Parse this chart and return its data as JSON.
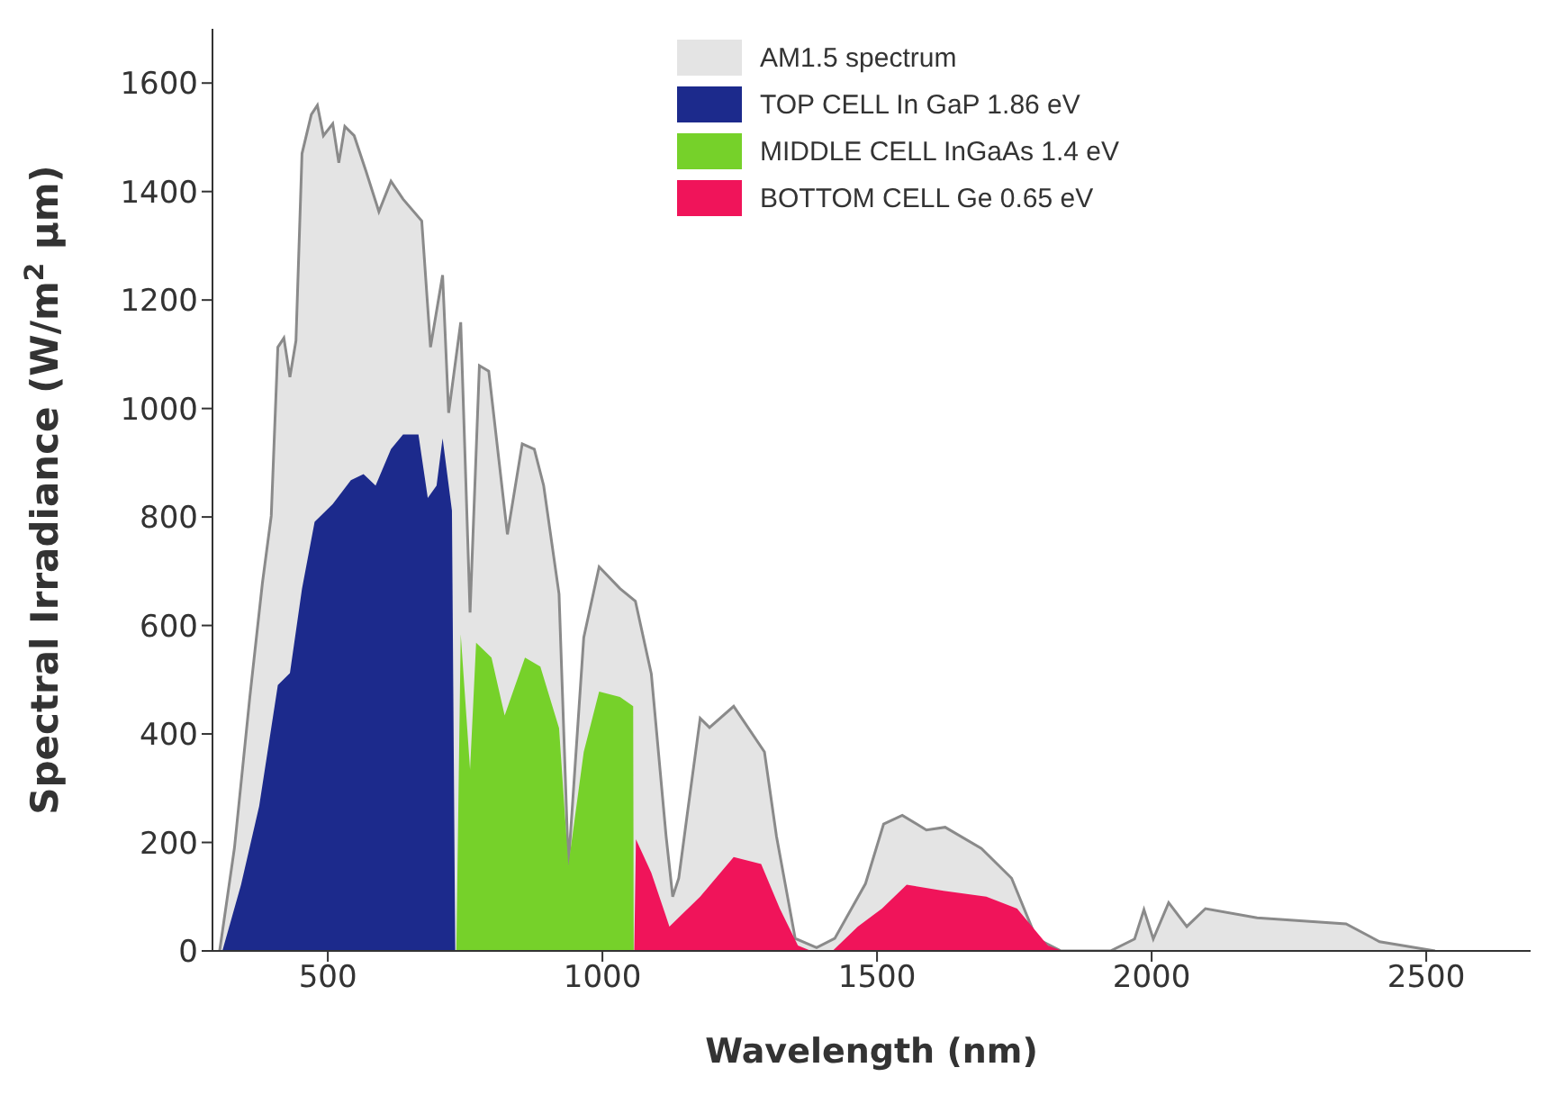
{
  "chart_data": {
    "type": "area",
    "xlabel": "Wavelength (nm)",
    "ylabel": "Spectral Irradiance (W/m$^{2}$ µm)",
    "xlim": [
      290,
      2690
    ],
    "ylim": [
      0,
      1700
    ],
    "xticks": [
      500,
      1000,
      1500,
      2000,
      2500
    ],
    "yticks": [
      0,
      200,
      400,
      600,
      800,
      1000,
      1200,
      1400,
      1600
    ],
    "legend": "top right",
    "grid": false,
    "series": [
      {
        "name": "AM1.5 spectrum",
        "color": "#e4e4e4",
        "x": [
          303,
          330,
          358,
          381,
          397,
          409,
          420,
          431,
          442,
          453,
          470,
          481,
          492,
          509,
          520,
          531,
          548,
          570,
          593,
          615,
          637,
          671,
          687,
          709,
          720,
          742,
          759,
          776,
          793,
          827,
          854,
          876,
          893,
          921,
          938,
          966,
          994,
          1032,
          1060,
          1089,
          1116,
          1128,
          1139,
          1155,
          1178,
          1195,
          1239,
          1295,
          1317,
          1351,
          1390,
          1423,
          1479,
          1512,
          1546,
          1590,
          1624,
          1690,
          1745,
          1790,
          1835,
          1925,
          1969,
          1986,
          2003,
          2031,
          2064,
          2098,
          2192,
          2354,
          2415,
          2516
        ],
        "values": [
          0,
          190,
          468,
          679,
          802,
          1113,
          1130,
          1058,
          1125,
          1470,
          1542,
          1559,
          1503,
          1525,
          1453,
          1520,
          1503,
          1436,
          1363,
          1419,
          1386,
          1346,
          1113,
          1246,
          992,
          1159,
          624,
          1079,
          1069,
          768,
          935,
          925,
          858,
          658,
          157,
          578,
          708,
          668,
          645,
          511,
          211,
          100,
          134,
          256,
          429,
          412,
          451,
          367,
          211,
          23,
          6,
          23,
          124,
          234,
          250,
          223,
          228,
          189,
          134,
          23,
          0,
          0,
          22,
          76,
          22,
          89,
          45,
          78,
          61,
          50,
          17,
          0
        ]
      },
      {
        "name": "TOP CELL In GaP 1.86 eV",
        "color": "#1c2a8c",
        "x": [
          308,
          342,
          375,
          409,
          431,
          453,
          476,
          509,
          542,
          565,
          587,
          615,
          637,
          665,
          682,
          698,
          709,
          726,
          732
        ],
        "values": [
          0,
          122,
          267,
          490,
          512,
          668,
          791,
          824,
          868,
          879,
          858,
          925,
          952,
          952,
          835,
          858,
          945,
          812,
          0
        ]
      },
      {
        "name": "MIDDLE CELL InGaAs 1.4 eV",
        "color": "#76d12a",
        "x": [
          734,
          742,
          759,
          770,
          798,
          822,
          859,
          887,
          921,
          938,
          966,
          994,
          1032,
          1056,
          1057
        ],
        "values": [
          0,
          584,
          334,
          568,
          541,
          434,
          541,
          524,
          411,
          157,
          367,
          478,
          468,
          451,
          0
        ]
      },
      {
        "name": "BOTTOM CELL Ge 0.65 eV",
        "color": "#f0145a",
        "x": [
          1058,
          1061,
          1089,
          1122,
          1178,
          1239,
          1289,
          1323,
          1356,
          1380,
          1419,
          1465,
          1509,
          1554,
          1621,
          1699,
          1755,
          1811,
          1838
        ],
        "values": [
          0,
          206,
          144,
          45,
          100,
          173,
          160,
          78,
          10,
          0,
          0,
          45,
          78,
          122,
          111,
          100,
          78,
          10,
          0
        ]
      }
    ]
  }
}
